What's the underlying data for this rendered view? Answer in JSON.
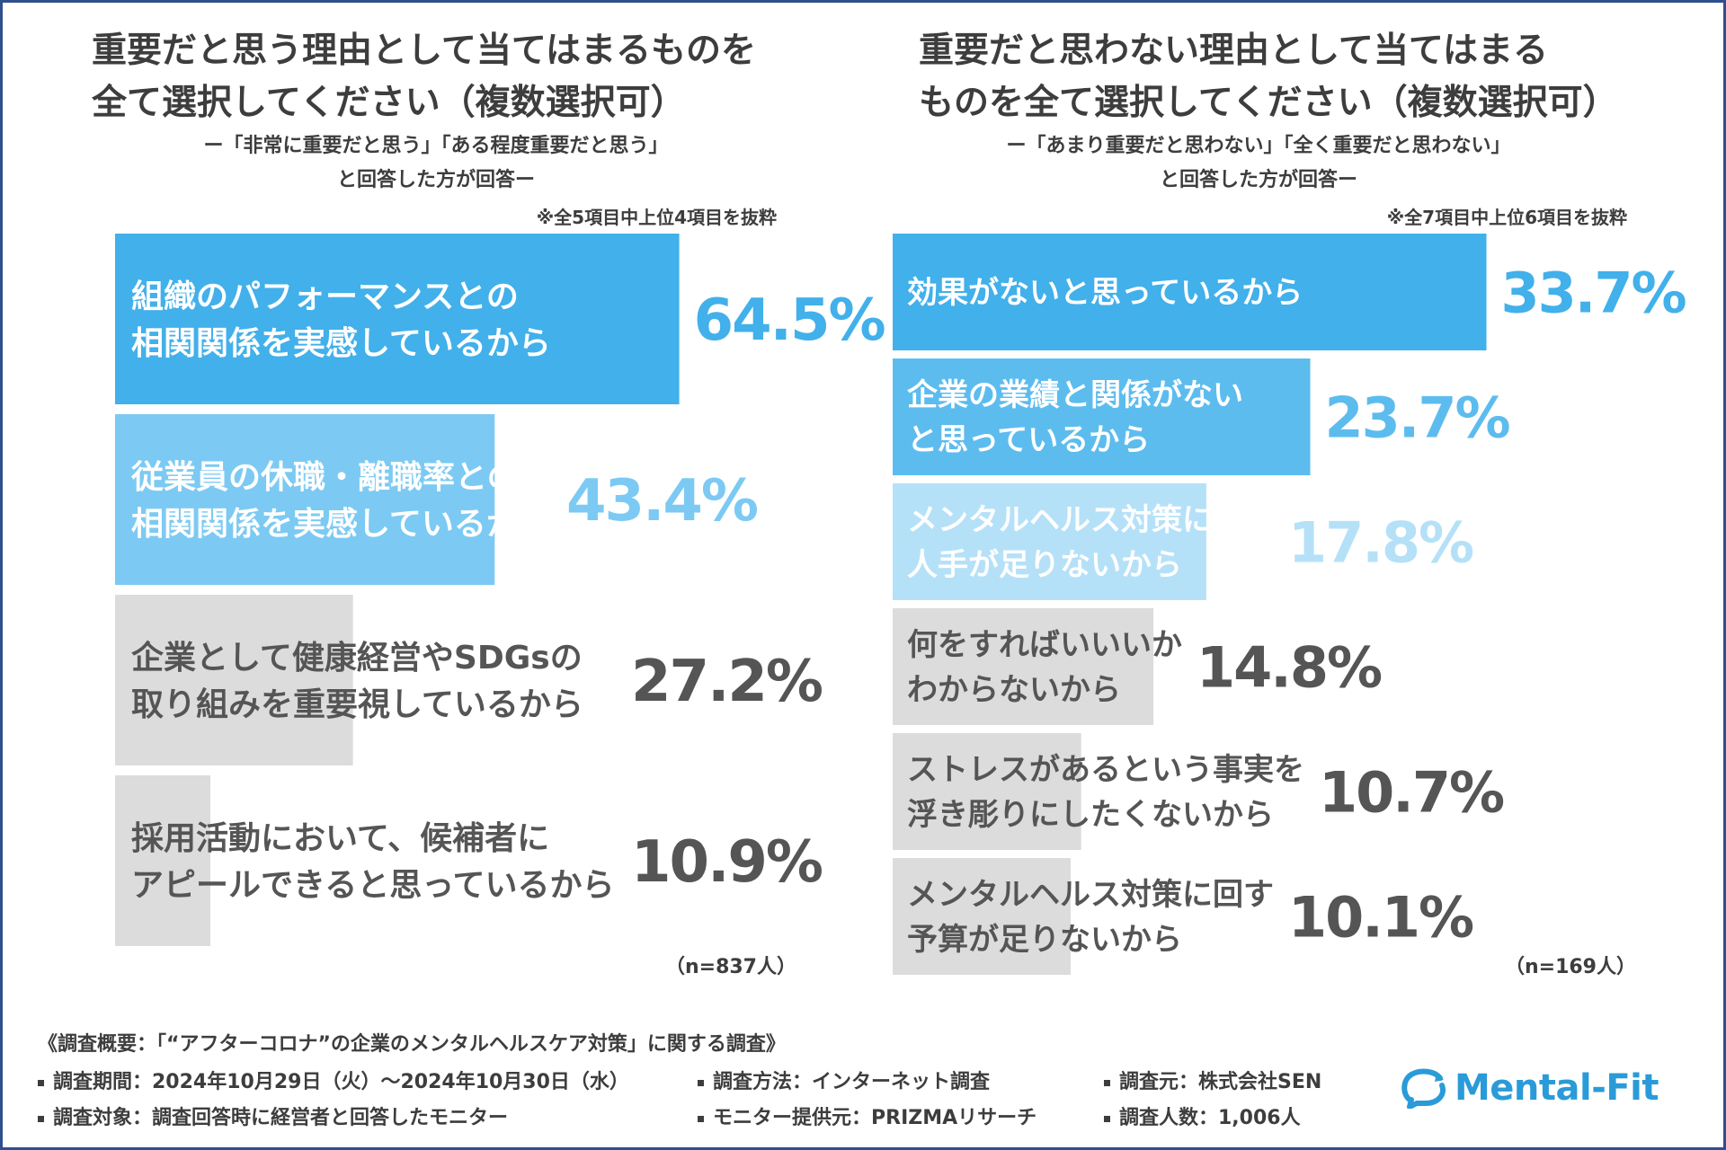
{
  "left_panel": {
    "title_lines": [
      "重要だと思う理由として当てはまるものを",
      "全て選択してください（複数選択可）"
    ],
    "subtitle_lines": [
      "ー「非常に重要だと思う」「ある程度重要だと思う」",
      "と回答した方が回答ー"
    ],
    "note": "※全5項目中上位4項目を抜粋",
    "n_label": "（n=837人）"
  },
  "right_panel": {
    "title_lines": [
      "重要だと思わない理由として当てはまる",
      "ものを全て選択してください（複数選択可）"
    ],
    "subtitle_lines": [
      "ー「あまり重要だと思わない」「全く重要だと思わない」",
      "と回答した方が回答ー"
    ],
    "note": "※全7項目中上位6項目を抜粋",
    "n_label": "（n=169人）"
  },
  "chart_data": [
    {
      "type": "bar",
      "orientation": "horizontal",
      "unit": "%",
      "categories": [
        [
          "組織のパフォーマンスとの",
          "相関関係を実感しているから"
        ],
        [
          "従業員の休職・離職率との",
          "相関関係を実感しているから"
        ],
        [
          "企業として健康経営やSDGsの",
          "取り組みを重要視しているから"
        ],
        [
          "採用活動において、候補者に",
          "アピールできると思っているから"
        ]
      ],
      "values": [
        64.5,
        43.4,
        27.2,
        10.9
      ],
      "value_labels": [
        "64.5%",
        "43.4%",
        "27.2%",
        "10.9%"
      ],
      "bar_colors": [
        "#42b0ea",
        "#7ccaf3",
        "#dcdcdc",
        "#dcdcdc"
      ],
      "value_label_colors": [
        "#42b0ea",
        "#7ccaf3",
        "#555555",
        "#555555"
      ],
      "category_label_colors": [
        "#ffffff",
        "#ffffff",
        "#555555",
        "#555555"
      ]
    },
    {
      "type": "bar",
      "orientation": "horizontal",
      "unit": "%",
      "categories": [
        [
          "効果がないと思っているから"
        ],
        [
          "企業の業績と関係がない",
          "と思っているから"
        ],
        [
          "メンタルヘルス対策に回す",
          "人手が足りないから"
        ],
        [
          "何をすればいいいか",
          "わからないから"
        ],
        [
          "ストレスがあるという事実を",
          "浮き彫りにしたくないから"
        ],
        [
          "メンタルヘルス対策に回す",
          "予算が足りないから"
        ]
      ],
      "values": [
        33.7,
        23.7,
        17.8,
        14.8,
        10.7,
        10.1
      ],
      "value_labels": [
        "33.7%",
        "23.7%",
        "17.8%",
        "14.8%",
        "10.7%",
        "10.1%"
      ],
      "bar_colors": [
        "#42b0ea",
        "#5dbcee",
        "#b5e1f8",
        "#dcdcdc",
        "#dcdcdc",
        "#dcdcdc"
      ],
      "value_label_colors": [
        "#42b0ea",
        "#5dbcee",
        "#b5e1f8",
        "#555555",
        "#555555",
        "#555555"
      ],
      "category_label_colors": [
        "#ffffff",
        "#ffffff",
        "#ffffff",
        "#555555",
        "#555555",
        "#555555"
      ]
    }
  ],
  "footer": {
    "title": "《調査概要：「“アフターコロナ”の企業のメンタルヘルスケア対策」に関する調査》",
    "items": [
      "調査期間：2024年10月29日（火）～2024年10月30日（水）",
      "調査方法：インターネット調査",
      "調査元：株式会社SEN",
      "調査対象：調査回答時に経営者と回答したモニター",
      "モニター提供元：PRIZMAリサーチ",
      "調査人数：1,006人"
    ],
    "logo_text": "Mental-Fit",
    "logo_icon": "speech-bubble-cycle-icon",
    "logo_color": "#2a9bd8"
  }
}
